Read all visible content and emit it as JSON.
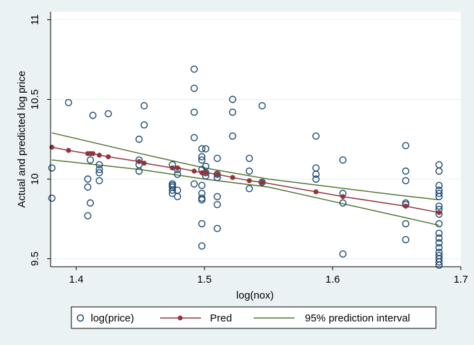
{
  "chart_data": {
    "type": "scatter",
    "xlabel": "log(nox)",
    "ylabel": "Actual and predicted log price",
    "xlim": [
      1.38,
      1.7
    ],
    "ylim": [
      9.45,
      11.05
    ],
    "x_ticks": [
      1.4,
      1.5,
      1.6,
      1.7
    ],
    "x_tick_labels": [
      "1.4",
      "1.5",
      "1.6",
      "1.7"
    ],
    "y_ticks": [
      9.5,
      10,
      10.5,
      11
    ],
    "y_tick_labels": [
      "9.5",
      "10",
      "10.5",
      "11"
    ],
    "grid": "horizontal",
    "legend_position": "bottom",
    "colors": {
      "background": "#eaf2f3",
      "plot_area": "#ffffff",
      "observed": "#1a476f",
      "pred": "#90353b",
      "interval": "#55752f",
      "grid": "#eaf2f3"
    },
    "series": [
      {
        "name": "log(price)",
        "kind": "scatter",
        "marker": "hollow-circle",
        "points": [
          [
            1.381,
            10.07
          ],
          [
            1.381,
            9.88
          ],
          [
            1.394,
            10.48
          ],
          [
            1.409,
            10.0
          ],
          [
            1.409,
            9.95
          ],
          [
            1.409,
            9.77
          ],
          [
            1.411,
            10.12
          ],
          [
            1.411,
            9.85
          ],
          [
            1.413,
            10.4
          ],
          [
            1.418,
            10.09
          ],
          [
            1.418,
            10.06
          ],
          [
            1.418,
            10.04
          ],
          [
            1.418,
            9.99
          ],
          [
            1.425,
            10.41
          ],
          [
            1.449,
            10.25
          ],
          [
            1.449,
            10.12
          ],
          [
            1.449,
            10.09
          ],
          [
            1.449,
            10.05
          ],
          [
            1.453,
            10.46
          ],
          [
            1.453,
            10.34
          ],
          [
            1.475,
            10.09
          ],
          [
            1.475,
            9.97
          ],
          [
            1.475,
            9.96
          ],
          [
            1.475,
            9.95
          ],
          [
            1.475,
            9.93
          ],
          [
            1.475,
            9.91
          ],
          [
            1.479,
            10.06
          ],
          [
            1.479,
            10.03
          ],
          [
            1.479,
            9.93
          ],
          [
            1.479,
            9.89
          ],
          [
            1.492,
            10.69
          ],
          [
            1.492,
            10.57
          ],
          [
            1.492,
            10.42
          ],
          [
            1.492,
            10.26
          ],
          [
            1.492,
            9.97
          ],
          [
            1.498,
            10.19
          ],
          [
            1.498,
            10.14
          ],
          [
            1.498,
            10.12
          ],
          [
            1.498,
            10.06
          ],
          [
            1.498,
            9.96
          ],
          [
            1.498,
            9.91
          ],
          [
            1.498,
            9.88
          ],
          [
            1.498,
            9.87
          ],
          [
            1.498,
            9.72
          ],
          [
            1.498,
            9.58
          ],
          [
            1.501,
            10.19
          ],
          [
            1.501,
            10.08
          ],
          [
            1.501,
            10.04
          ],
          [
            1.501,
            10.02
          ],
          [
            1.51,
            10.13
          ],
          [
            1.51,
            10.03
          ],
          [
            1.51,
            10.01
          ],
          [
            1.51,
            9.89
          ],
          [
            1.51,
            9.84
          ],
          [
            1.51,
            9.69
          ],
          [
            1.522,
            10.5
          ],
          [
            1.522,
            10.42
          ],
          [
            1.522,
            10.27
          ],
          [
            1.535,
            10.13
          ],
          [
            1.535,
            10.05
          ],
          [
            1.535,
            9.94
          ],
          [
            1.545,
            10.46
          ],
          [
            1.545,
            9.98
          ],
          [
            1.587,
            10.27
          ],
          [
            1.587,
            10.07
          ],
          [
            1.587,
            10.03
          ],
          [
            1.587,
            10.0
          ],
          [
            1.608,
            10.12
          ],
          [
            1.608,
            9.91
          ],
          [
            1.608,
            9.85
          ],
          [
            1.608,
            9.53
          ],
          [
            1.657,
            10.21
          ],
          [
            1.657,
            10.05
          ],
          [
            1.657,
            9.99
          ],
          [
            1.657,
            9.85
          ],
          [
            1.657,
            9.84
          ],
          [
            1.657,
            9.72
          ],
          [
            1.657,
            9.62
          ],
          [
            1.683,
            10.09
          ],
          [
            1.683,
            10.05
          ],
          [
            1.683,
            9.96
          ],
          [
            1.683,
            9.93
          ],
          [
            1.683,
            9.91
          ],
          [
            1.683,
            9.89
          ],
          [
            1.683,
            9.83
          ],
          [
            1.683,
            9.81
          ],
          [
            1.683,
            9.78
          ],
          [
            1.683,
            9.72
          ],
          [
            1.683,
            9.66
          ],
          [
            1.683,
            9.63
          ],
          [
            1.683,
            9.6
          ],
          [
            1.683,
            9.57
          ],
          [
            1.683,
            9.54
          ],
          [
            1.683,
            9.52
          ],
          [
            1.683,
            9.5
          ],
          [
            1.683,
            9.48
          ],
          [
            1.683,
            9.46
          ]
        ]
      },
      {
        "name": "Pred",
        "kind": "line-marker",
        "points": [
          [
            1.381,
            10.2
          ],
          [
            1.394,
            10.18
          ],
          [
            1.409,
            10.16
          ],
          [
            1.411,
            10.16
          ],
          [
            1.413,
            10.16
          ],
          [
            1.418,
            10.15
          ],
          [
            1.425,
            10.14
          ],
          [
            1.449,
            10.11
          ],
          [
            1.453,
            10.1
          ],
          [
            1.475,
            10.07
          ],
          [
            1.479,
            10.07
          ],
          [
            1.492,
            10.05
          ],
          [
            1.498,
            10.04
          ],
          [
            1.501,
            10.04
          ],
          [
            1.51,
            10.03
          ],
          [
            1.522,
            10.01
          ],
          [
            1.535,
            9.99
          ],
          [
            1.545,
            9.98
          ],
          [
            1.587,
            9.92
          ],
          [
            1.608,
            9.89
          ],
          [
            1.657,
            9.83
          ],
          [
            1.683,
            9.79
          ]
        ]
      },
      {
        "name": "95% prediction interval",
        "kind": "line",
        "upper": [
          [
            1.381,
            10.29
          ],
          [
            1.45,
            10.16
          ],
          [
            1.5,
            10.07
          ],
          [
            1.55,
            10.0
          ],
          [
            1.6,
            9.95
          ],
          [
            1.65,
            9.9
          ],
          [
            1.683,
            9.87
          ]
        ],
        "lower": [
          [
            1.381,
            10.12
          ],
          [
            1.45,
            10.06
          ],
          [
            1.5,
            10.0
          ],
          [
            1.55,
            9.95
          ],
          [
            1.6,
            9.86
          ],
          [
            1.65,
            9.77
          ],
          [
            1.683,
            9.71
          ]
        ]
      }
    ]
  }
}
